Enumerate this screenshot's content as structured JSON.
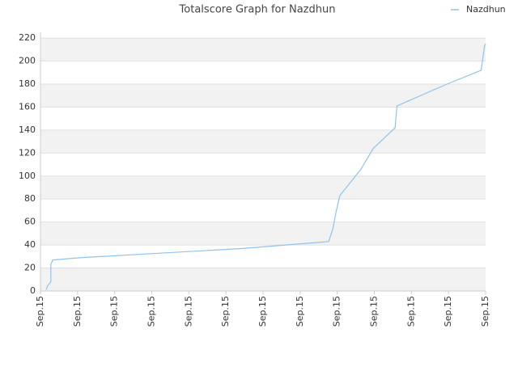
{
  "chart_data": {
    "type": "line",
    "title": "Totalscore Graph for Nazdhun",
    "x": [
      0.15,
      0.2,
      0.28,
      0.28,
      0.33,
      1.09,
      3.27,
      5.46,
      7.77,
      7.88,
      7.97,
      8.07,
      8.64,
      8.97,
      9.56,
      9.61,
      10.96,
      11.88,
      11.97,
      12
    ],
    "series": [
      {
        "name": "Nazdhun",
        "color": "#8fc3ee",
        "values": [
          1,
          5,
          8,
          23,
          27,
          29,
          33,
          37,
          43,
          54,
          69,
          83,
          106,
          124,
          142,
          161,
          180,
          192,
          213,
          215
        ]
      }
    ],
    "xlim": [
      0,
      12
    ],
    "xticks": [
      {
        "value": 0,
        "label": "Sep.15"
      },
      {
        "value": 1,
        "label": "Sep.15"
      },
      {
        "value": 2,
        "label": "Sep.15"
      },
      {
        "value": 3,
        "label": "Sep.15"
      },
      {
        "value": 4,
        "label": "Sep.15"
      },
      {
        "value": 5,
        "label": "Sep.15"
      },
      {
        "value": 6,
        "label": "Sep.15"
      },
      {
        "value": 7,
        "label": "Sep.15"
      },
      {
        "value": 8,
        "label": "Sep.15"
      },
      {
        "value": 9,
        "label": "Sep.15"
      },
      {
        "value": 10,
        "label": "Sep.15"
      },
      {
        "value": 11,
        "label": "Sep.15"
      },
      {
        "value": 12,
        "label": "Sep.15"
      }
    ],
    "ylim": [
      0,
      225
    ],
    "yticks": [
      0,
      20,
      40,
      60,
      80,
      100,
      120,
      140,
      160,
      180,
      200,
      220
    ],
    "grid": true,
    "legend": "top-right"
  }
}
